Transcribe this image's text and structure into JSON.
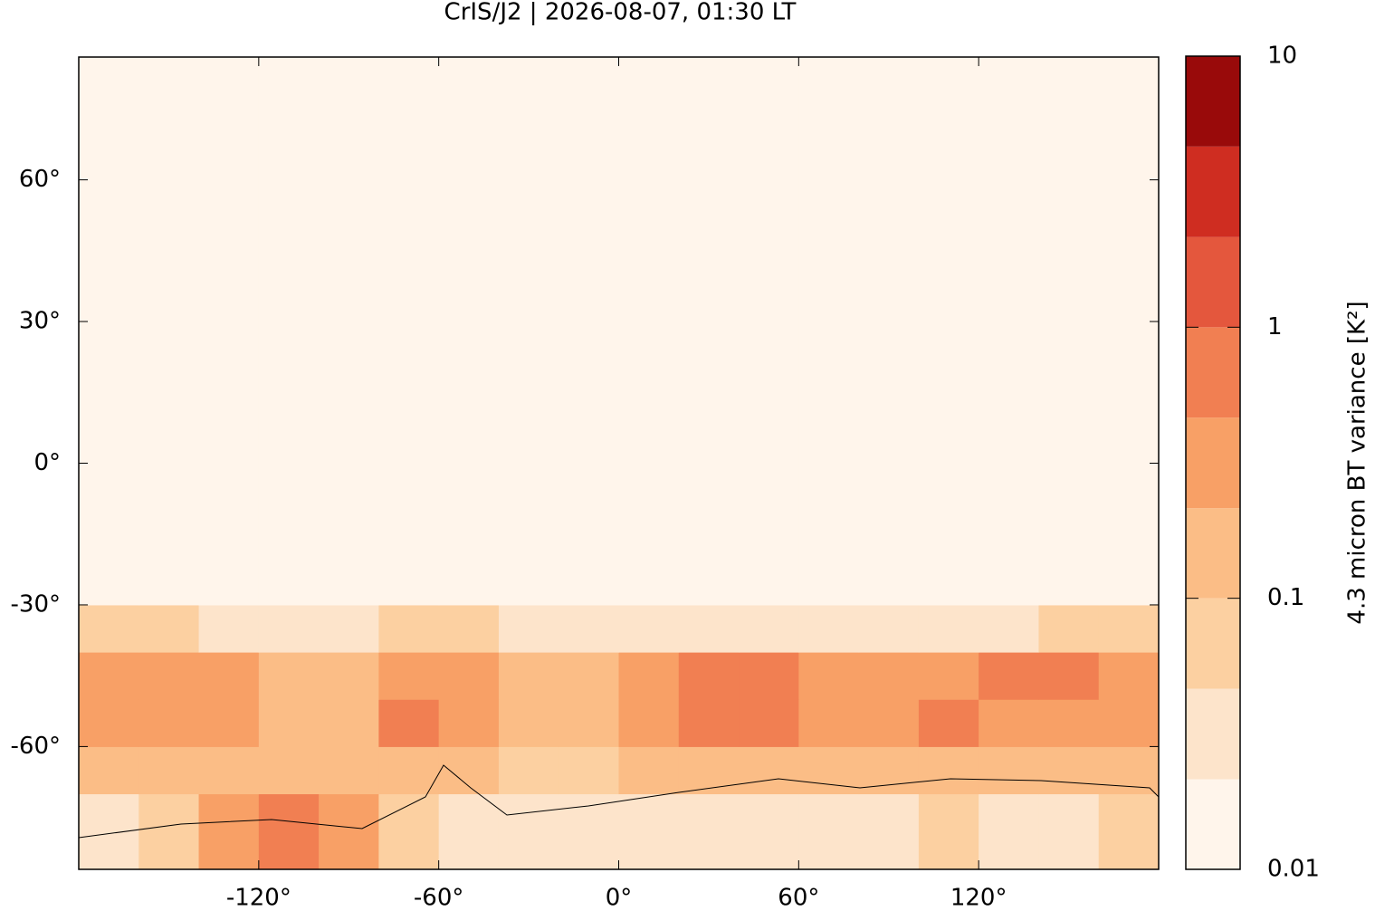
{
  "chart_data": {
    "type": "gridmap",
    "title": "CrIS/J2 | 2026-08-07, 01:30 LT",
    "xlim": [
      -180,
      180
    ],
    "ylim": [
      -86,
      86
    ],
    "xticks": [
      {
        "value": -120,
        "label": "-120°"
      },
      {
        "value": -60,
        "label": "-60°"
      },
      {
        "value": 0,
        "label": "0°"
      },
      {
        "value": 60,
        "label": "60°"
      },
      {
        "value": 120,
        "label": "120°"
      }
    ],
    "yticks": [
      {
        "value": 60,
        "label": "60°"
      },
      {
        "value": 30,
        "label": "30°"
      },
      {
        "value": 0,
        "label": "0°"
      },
      {
        "value": -30,
        "label": "-30°"
      },
      {
        "value": -60,
        "label": "-60°"
      }
    ],
    "lon_edges": [
      -180,
      -160,
      -140,
      -120,
      -100,
      -80,
      -60,
      -40,
      -20,
      0,
      20,
      40,
      60,
      80,
      100,
      120,
      140,
      160,
      180
    ],
    "lat_edges": [
      -86,
      -70,
      -60,
      -50,
      -40,
      -30,
      86
    ],
    "values": [
      [
        0.04,
        0.05,
        0.3,
        0.5,
        0.4,
        0.05,
        0.03,
        0.03,
        0.03,
        0.03,
        0.03,
        0.03,
        0.04,
        0.03,
        0.05,
        0.03,
        0.03,
        0.05
      ],
      [
        0.15,
        0.12,
        0.1,
        0.1,
        0.12,
        0.2,
        0.15,
        0.08,
        0.06,
        0.1,
        0.15,
        0.15,
        0.12,
        0.1,
        0.12,
        0.15,
        0.12,
        0.1
      ],
      [
        0.3,
        0.25,
        0.4,
        0.2,
        0.15,
        0.5,
        0.3,
        0.2,
        0.15,
        0.4,
        0.5,
        0.5,
        0.4,
        0.3,
        0.5,
        0.4,
        0.35,
        0.25
      ],
      [
        0.25,
        0.3,
        0.25,
        0.15,
        0.12,
        0.4,
        0.25,
        0.15,
        0.12,
        0.3,
        0.6,
        0.5,
        0.4,
        0.25,
        0.4,
        0.6,
        0.5,
        0.3
      ],
      [
        0.05,
        0.05,
        0.04,
        0.03,
        0.03,
        0.05,
        0.06,
        0.04,
        0.03,
        0.03,
        0.04,
        0.03,
        0.03,
        0.03,
        0.04,
        0.04,
        0.05,
        0.05
      ],
      [
        0.012,
        0.012,
        0.012,
        0.012,
        0.012,
        0.012,
        0.012,
        0.012,
        0.012,
        0.012,
        0.012,
        0.012,
        0.012,
        0.012,
        0.012,
        0.012,
        0.012,
        0.012
      ]
    ],
    "colorbar_label": "4.3 micron BT variance [K²]",
    "clim": [
      0.01,
      10
    ],
    "clog": true,
    "cticks": [
      10,
      1,
      0.1,
      0.01
    ],
    "levels": [
      0.01,
      0.0215,
      0.0464,
      0.1,
      0.215,
      0.464,
      1,
      2.15,
      4.64,
      10
    ],
    "colors": [
      "#fff5eb",
      "#fde4cb",
      "#fcd0a1",
      "#fbbd86",
      "#f8a066",
      "#f17f52",
      "#e4573d",
      "#cf2d21",
      "#990a0a"
    ]
  }
}
